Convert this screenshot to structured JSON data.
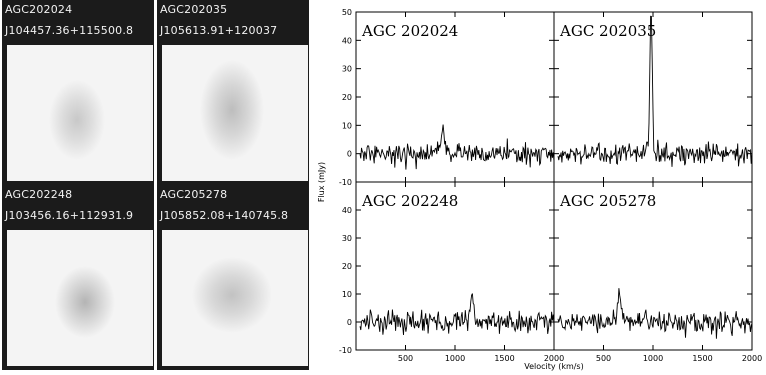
{
  "thumbnails": [
    {
      "name": "AGC202024",
      "designation": "J104457.36+115500.8"
    },
    {
      "name": "AGC202035",
      "designation": "J105613.91+120037"
    },
    {
      "name": "AGC202248",
      "designation": "J103456.16+112931.9"
    },
    {
      "name": "AGC205278",
      "designation": "J105852.08+140745.8"
    }
  ],
  "chart_data": {
    "type": "line",
    "xlabel": "Velocity (km/s)",
    "ylabel": "Flux (mJy)",
    "xlim": [
      0,
      2000
    ],
    "ylim": [
      -10,
      50
    ],
    "xticks": [
      500,
      1000,
      1500,
      2000
    ],
    "yticks": [
      -10,
      0,
      10,
      20,
      30,
      40,
      50
    ],
    "panels": [
      {
        "name": "AGC 202024",
        "peak_velocity": 880,
        "peak_flux": 9
      },
      {
        "name": "AGC 202035",
        "peak_velocity": 980,
        "peak_flux": 50
      },
      {
        "name": "AGC 202248",
        "peak_velocity": 1170,
        "peak_flux": 11
      },
      {
        "name": "AGC 205278",
        "peak_velocity": 660,
        "peak_flux": 10
      }
    ],
    "noise_rms": 2
  }
}
